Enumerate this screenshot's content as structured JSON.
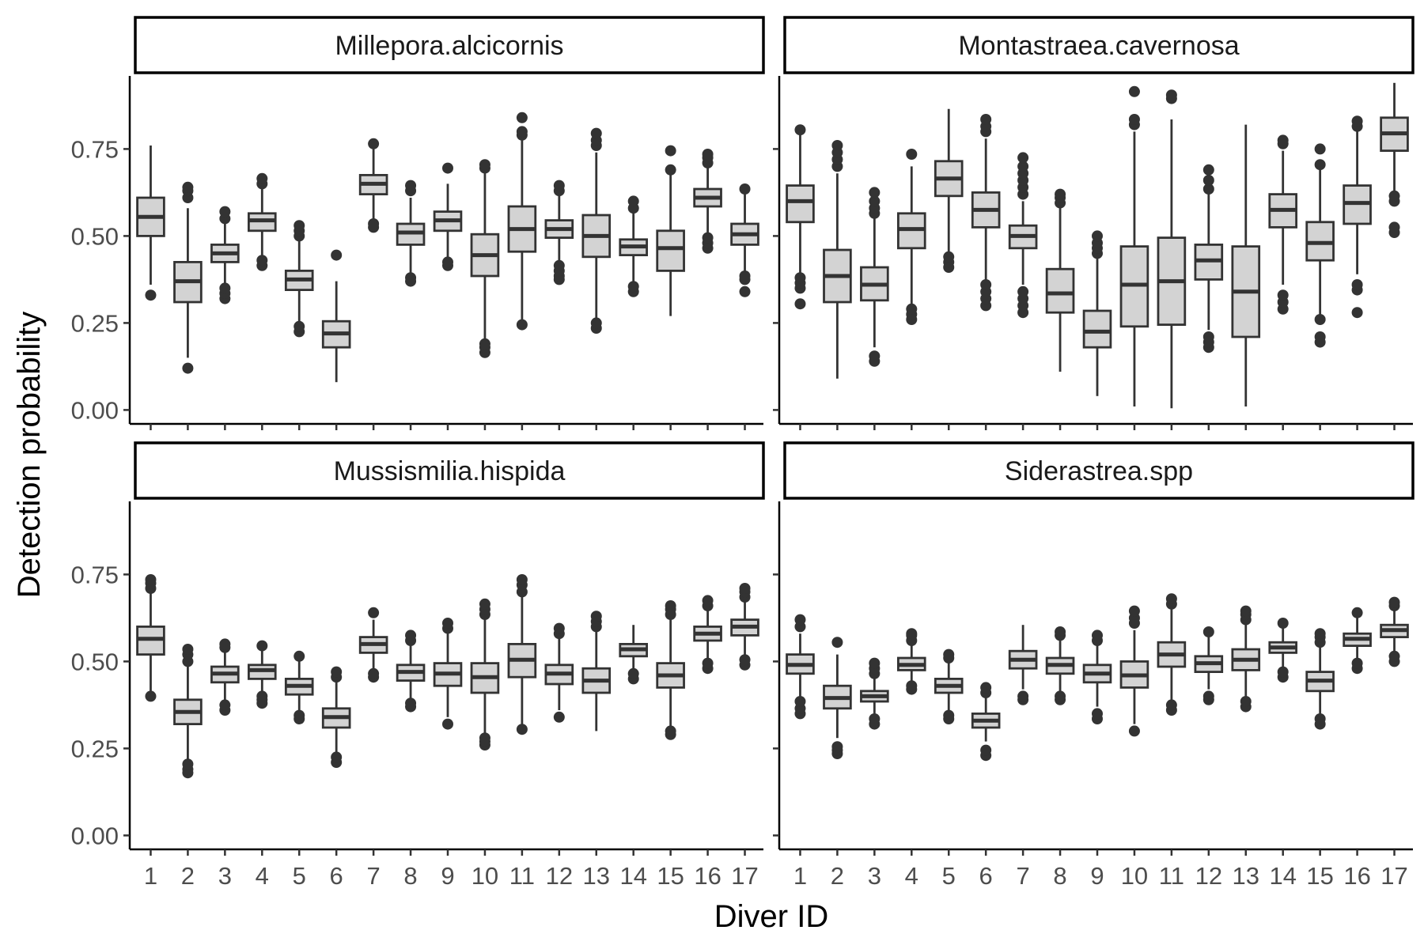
{
  "chart_data": {
    "type": "boxplot",
    "layout": "facet grid 2x2",
    "xlabel": "Diver ID",
    "ylabel": "Detection probability",
    "categories": [
      "1",
      "2",
      "3",
      "4",
      "5",
      "6",
      "7",
      "8",
      "9",
      "10",
      "11",
      "12",
      "13",
      "14",
      "15",
      "16",
      "17"
    ],
    "y_ticks": [
      "0.00",
      "0.25",
      "0.50",
      "0.75"
    ],
    "ylim": [
      -0.04,
      0.96
    ],
    "box_fill": "#d3d3d3",
    "line_color": "#333333",
    "panels": [
      {
        "title": "Millepora.alcicornis",
        "boxes": [
          {
            "min": 0.36,
            "q1": 0.5,
            "median": 0.555,
            "q3": 0.61,
            "max": 0.76,
            "outliers": [
              0.33
            ]
          },
          {
            "min": 0.15,
            "q1": 0.31,
            "median": 0.37,
            "q3": 0.425,
            "max": 0.58,
            "outliers": [
              0.12,
              0.61,
              0.63,
              0.64
            ]
          },
          {
            "min": 0.35,
            "q1": 0.425,
            "median": 0.45,
            "q3": 0.475,
            "max": 0.54,
            "outliers": [
              0.32,
              0.335,
              0.35,
              0.55,
              0.57
            ]
          },
          {
            "min": 0.44,
            "q1": 0.515,
            "median": 0.545,
            "q3": 0.565,
            "max": 0.64,
            "outliers": [
              0.415,
              0.43,
              0.65,
              0.665
            ]
          },
          {
            "min": 0.25,
            "q1": 0.345,
            "median": 0.375,
            "q3": 0.4,
            "max": 0.49,
            "outliers": [
              0.225,
              0.24,
              0.5,
              0.515,
              0.53
            ]
          },
          {
            "min": 0.08,
            "q1": 0.18,
            "median": 0.22,
            "q3": 0.255,
            "max": 0.37,
            "outliers": [
              0.445
            ]
          },
          {
            "min": 0.54,
            "q1": 0.62,
            "median": 0.65,
            "q3": 0.675,
            "max": 0.75,
            "outliers": [
              0.525,
              0.535,
              0.765
            ]
          },
          {
            "min": 0.39,
            "q1": 0.475,
            "median": 0.51,
            "q3": 0.535,
            "max": 0.61,
            "outliers": [
              0.37,
              0.38,
              0.63,
              0.645
            ]
          },
          {
            "min": 0.43,
            "q1": 0.515,
            "median": 0.545,
            "q3": 0.57,
            "max": 0.65,
            "outliers": [
              0.415,
              0.425,
              0.695
            ]
          },
          {
            "min": 0.2,
            "q1": 0.385,
            "median": 0.445,
            "q3": 0.505,
            "max": 0.68,
            "outliers": [
              0.165,
              0.18,
              0.19,
              0.695,
              0.705
            ]
          },
          {
            "min": 0.26,
            "q1": 0.455,
            "median": 0.52,
            "q3": 0.585,
            "max": 0.78,
            "outliers": [
              0.245,
              0.79,
              0.8,
              0.84
            ]
          },
          {
            "min": 0.4,
            "q1": 0.495,
            "median": 0.52,
            "q3": 0.545,
            "max": 0.62,
            "outliers": [
              0.375,
              0.385,
              0.4,
              0.415,
              0.63,
              0.645
            ]
          },
          {
            "min": 0.26,
            "q1": 0.44,
            "median": 0.5,
            "q3": 0.56,
            "max": 0.74,
            "outliers": [
              0.235,
              0.25,
              0.76,
              0.775,
              0.795
            ]
          },
          {
            "min": 0.36,
            "q1": 0.445,
            "median": 0.47,
            "q3": 0.49,
            "max": 0.565,
            "outliers": [
              0.34,
              0.355,
              0.58,
              0.6
            ]
          },
          {
            "min": 0.27,
            "q1": 0.4,
            "median": 0.465,
            "q3": 0.515,
            "max": 0.68,
            "outliers": [
              0.69,
              0.745
            ]
          },
          {
            "min": 0.51,
            "q1": 0.585,
            "median": 0.61,
            "q3": 0.635,
            "max": 0.7,
            "outliers": [
              0.465,
              0.48,
              0.495,
              0.71,
              0.725,
              0.735
            ]
          },
          {
            "min": 0.4,
            "q1": 0.475,
            "median": 0.505,
            "q3": 0.535,
            "max": 0.62,
            "outliers": [
              0.34,
              0.375,
              0.385,
              0.635
            ]
          }
        ]
      },
      {
        "title": "Montastraea.cavernosa",
        "boxes": [
          {
            "min": 0.38,
            "q1": 0.54,
            "median": 0.6,
            "q3": 0.645,
            "max": 0.79,
            "outliers": [
              0.305,
              0.35,
              0.365,
              0.38,
              0.805
            ]
          },
          {
            "min": 0.09,
            "q1": 0.31,
            "median": 0.385,
            "q3": 0.46,
            "max": 0.68,
            "outliers": [
              0.7,
              0.72,
              0.74,
              0.76
            ]
          },
          {
            "min": 0.18,
            "q1": 0.315,
            "median": 0.36,
            "q3": 0.41,
            "max": 0.55,
            "outliers": [
              0.14,
              0.155,
              0.565,
              0.58,
              0.6,
              0.625
            ]
          },
          {
            "min": 0.3,
            "q1": 0.465,
            "median": 0.52,
            "q3": 0.565,
            "max": 0.7,
            "outliers": [
              0.26,
              0.275,
              0.29,
              0.735
            ]
          },
          {
            "min": 0.45,
            "q1": 0.615,
            "median": 0.665,
            "q3": 0.715,
            "max": 0.865,
            "outliers": [
              0.41,
              0.425,
              0.44
            ]
          },
          {
            "min": 0.37,
            "q1": 0.525,
            "median": 0.575,
            "q3": 0.625,
            "max": 0.78,
            "outliers": [
              0.3,
              0.32,
              0.34,
              0.36,
              0.8,
              0.815,
              0.835
            ]
          },
          {
            "min": 0.36,
            "q1": 0.465,
            "median": 0.5,
            "q3": 0.53,
            "max": 0.6,
            "outliers": [
              0.28,
              0.3,
              0.32,
              0.34,
              0.62,
              0.64,
              0.66,
              0.68,
              0.7,
              0.725
            ]
          },
          {
            "min": 0.11,
            "q1": 0.28,
            "median": 0.335,
            "q3": 0.405,
            "max": 0.58,
            "outliers": [
              0.595,
              0.61,
              0.62
            ]
          },
          {
            "min": 0.04,
            "q1": 0.18,
            "median": 0.225,
            "q3": 0.285,
            "max": 0.44,
            "outliers": [
              0.45,
              0.465,
              0.48,
              0.5
            ]
          },
          {
            "min": 0.01,
            "q1": 0.24,
            "median": 0.36,
            "q3": 0.47,
            "max": 0.8,
            "outliers": [
              0.82,
              0.835,
              0.915
            ]
          },
          {
            "min": 0.005,
            "q1": 0.245,
            "median": 0.37,
            "q3": 0.495,
            "max": 0.835,
            "outliers": [
              0.895,
              0.905
            ]
          },
          {
            "min": 0.23,
            "q1": 0.375,
            "median": 0.43,
            "q3": 0.475,
            "max": 0.62,
            "outliers": [
              0.18,
              0.195,
              0.21,
              0.635,
              0.66,
              0.69
            ]
          },
          {
            "min": 0.01,
            "q1": 0.21,
            "median": 0.34,
            "q3": 0.47,
            "max": 0.82,
            "outliers": []
          },
          {
            "min": 0.36,
            "q1": 0.525,
            "median": 0.575,
            "q3": 0.62,
            "max": 0.745,
            "outliers": [
              0.29,
              0.31,
              0.33,
              0.765,
              0.775
            ]
          },
          {
            "min": 0.27,
            "q1": 0.43,
            "median": 0.48,
            "q3": 0.54,
            "max": 0.69,
            "outliers": [
              0.195,
              0.21,
              0.26,
              0.705,
              0.75
            ]
          },
          {
            "min": 0.39,
            "q1": 0.535,
            "median": 0.595,
            "q3": 0.645,
            "max": 0.8,
            "outliers": [
              0.28,
              0.345,
              0.36,
              0.815,
              0.83
            ]
          },
          {
            "min": 0.62,
            "q1": 0.745,
            "median": 0.795,
            "q3": 0.84,
            "max": 0.94,
            "outliers": [
              0.51,
              0.525,
              0.6,
              0.615
            ]
          }
        ]
      },
      {
        "title": "Mussismilia.hispida",
        "boxes": [
          {
            "min": 0.41,
            "q1": 0.52,
            "median": 0.565,
            "q3": 0.6,
            "max": 0.7,
            "outliers": [
              0.4,
              0.71,
              0.725,
              0.735
            ]
          },
          {
            "min": 0.22,
            "q1": 0.32,
            "median": 0.355,
            "q3": 0.39,
            "max": 0.49,
            "outliers": [
              0.18,
              0.19,
              0.205,
              0.5,
              0.52,
              0.535
            ]
          },
          {
            "min": 0.38,
            "q1": 0.44,
            "median": 0.465,
            "q3": 0.485,
            "max": 0.53,
            "outliers": [
              0.36,
              0.375,
              0.54,
              0.55
            ]
          },
          {
            "min": 0.4,
            "q1": 0.45,
            "median": 0.475,
            "q3": 0.49,
            "max": 0.54,
            "outliers": [
              0.38,
              0.39,
              0.4,
              0.545
            ]
          },
          {
            "min": 0.35,
            "q1": 0.405,
            "median": 0.43,
            "q3": 0.45,
            "max": 0.51,
            "outliers": [
              0.335,
              0.345,
              0.515
            ]
          },
          {
            "min": 0.24,
            "q1": 0.31,
            "median": 0.34,
            "q3": 0.365,
            "max": 0.44,
            "outliers": [
              0.21,
              0.225,
              0.455,
              0.47
            ]
          },
          {
            "min": 0.47,
            "q1": 0.525,
            "median": 0.55,
            "q3": 0.57,
            "max": 0.62,
            "outliers": [
              0.455,
              0.465,
              0.64
            ]
          },
          {
            "min": 0.39,
            "q1": 0.445,
            "median": 0.47,
            "q3": 0.49,
            "max": 0.55,
            "outliers": [
              0.37,
              0.38,
              0.56,
              0.575
            ]
          },
          {
            "min": 0.34,
            "q1": 0.43,
            "median": 0.465,
            "q3": 0.495,
            "max": 0.58,
            "outliers": [
              0.32,
              0.595,
              0.61
            ]
          },
          {
            "min": 0.29,
            "q1": 0.41,
            "median": 0.455,
            "q3": 0.495,
            "max": 0.62,
            "outliers": [
              0.26,
              0.27,
              0.28,
              0.635,
              0.65,
              0.665
            ]
          },
          {
            "min": 0.31,
            "q1": 0.455,
            "median": 0.505,
            "q3": 0.55,
            "max": 0.69,
            "outliers": [
              0.305,
              0.7,
              0.72,
              0.735
            ]
          },
          {
            "min": 0.36,
            "q1": 0.435,
            "median": 0.465,
            "q3": 0.49,
            "max": 0.57,
            "outliers": [
              0.34,
              0.58,
              0.595
            ]
          },
          {
            "min": 0.3,
            "q1": 0.41,
            "median": 0.445,
            "q3": 0.48,
            "max": 0.59,
            "outliers": [
              0.6,
              0.615,
              0.63
            ]
          },
          {
            "min": 0.47,
            "q1": 0.515,
            "median": 0.535,
            "q3": 0.55,
            "max": 0.605,
            "outliers": [
              0.45,
              0.465
            ]
          },
          {
            "min": 0.31,
            "q1": 0.425,
            "median": 0.46,
            "q3": 0.495,
            "max": 0.62,
            "outliers": [
              0.29,
              0.3,
              0.635,
              0.65,
              0.66
            ]
          },
          {
            "min": 0.51,
            "q1": 0.56,
            "median": 0.58,
            "q3": 0.6,
            "max": 0.65,
            "outliers": [
              0.48,
              0.495,
              0.66,
              0.675
            ]
          },
          {
            "min": 0.52,
            "q1": 0.575,
            "median": 0.6,
            "q3": 0.62,
            "max": 0.675,
            "outliers": [
              0.49,
              0.505,
              0.685,
              0.7,
              0.71
            ]
          }
        ]
      },
      {
        "title": "Siderastrea.spp",
        "boxes": [
          {
            "min": 0.4,
            "q1": 0.465,
            "median": 0.49,
            "q3": 0.52,
            "max": 0.58,
            "outliers": [
              0.35,
              0.365,
              0.385,
              0.6,
              0.62
            ]
          },
          {
            "min": 0.28,
            "q1": 0.365,
            "median": 0.395,
            "q3": 0.43,
            "max": 0.52,
            "outliers": [
              0.235,
              0.245,
              0.255,
              0.555
            ]
          },
          {
            "min": 0.35,
            "q1": 0.385,
            "median": 0.4,
            "q3": 0.415,
            "max": 0.455,
            "outliers": [
              0.32,
              0.335,
              0.465,
              0.48,
              0.495
            ]
          },
          {
            "min": 0.44,
            "q1": 0.475,
            "median": 0.49,
            "q3": 0.51,
            "max": 0.55,
            "outliers": [
              0.42,
              0.43,
              0.56,
              0.575,
              0.58
            ]
          },
          {
            "min": 0.36,
            "q1": 0.41,
            "median": 0.43,
            "q3": 0.45,
            "max": 0.5,
            "outliers": [
              0.335,
              0.345,
              0.51,
              0.52
            ]
          },
          {
            "min": 0.27,
            "q1": 0.31,
            "median": 0.33,
            "q3": 0.35,
            "max": 0.4,
            "outliers": [
              0.23,
              0.245,
              0.41,
              0.425
            ]
          },
          {
            "min": 0.42,
            "q1": 0.48,
            "median": 0.505,
            "q3": 0.53,
            "max": 0.605,
            "outliers": [
              0.39,
              0.4
            ]
          },
          {
            "min": 0.41,
            "q1": 0.465,
            "median": 0.49,
            "q3": 0.51,
            "max": 0.565,
            "outliers": [
              0.39,
              0.4,
              0.575,
              0.585
            ]
          },
          {
            "min": 0.37,
            "q1": 0.44,
            "median": 0.465,
            "q3": 0.49,
            "max": 0.55,
            "outliers": [
              0.335,
              0.35,
              0.56,
              0.575
            ]
          },
          {
            "min": 0.32,
            "q1": 0.425,
            "median": 0.46,
            "q3": 0.5,
            "max": 0.59,
            "outliers": [
              0.3,
              0.61,
              0.625,
              0.645
            ]
          },
          {
            "min": 0.39,
            "q1": 0.485,
            "median": 0.52,
            "q3": 0.555,
            "max": 0.65,
            "outliers": [
              0.36,
              0.375,
              0.665,
              0.68
            ]
          },
          {
            "min": 0.42,
            "q1": 0.47,
            "median": 0.495,
            "q3": 0.515,
            "max": 0.57,
            "outliers": [
              0.39,
              0.4,
              0.585
            ]
          },
          {
            "min": 0.4,
            "q1": 0.475,
            "median": 0.505,
            "q3": 0.535,
            "max": 0.61,
            "outliers": [
              0.37,
              0.385,
              0.62,
              0.635,
              0.645
            ]
          },
          {
            "min": 0.48,
            "q1": 0.525,
            "median": 0.54,
            "q3": 0.555,
            "max": 0.6,
            "outliers": [
              0.455,
              0.47,
              0.61
            ]
          },
          {
            "min": 0.35,
            "q1": 0.415,
            "median": 0.445,
            "q3": 0.47,
            "max": 0.54,
            "outliers": [
              0.32,
              0.335,
              0.555,
              0.57,
              0.58
            ]
          },
          {
            "min": 0.51,
            "q1": 0.545,
            "median": 0.565,
            "q3": 0.58,
            "max": 0.625,
            "outliers": [
              0.48,
              0.495,
              0.64
            ]
          },
          {
            "min": 0.53,
            "q1": 0.57,
            "median": 0.59,
            "q3": 0.605,
            "max": 0.65,
            "outliers": [
              0.5,
              0.515,
              0.66,
              0.67
            ]
          }
        ]
      }
    ]
  }
}
